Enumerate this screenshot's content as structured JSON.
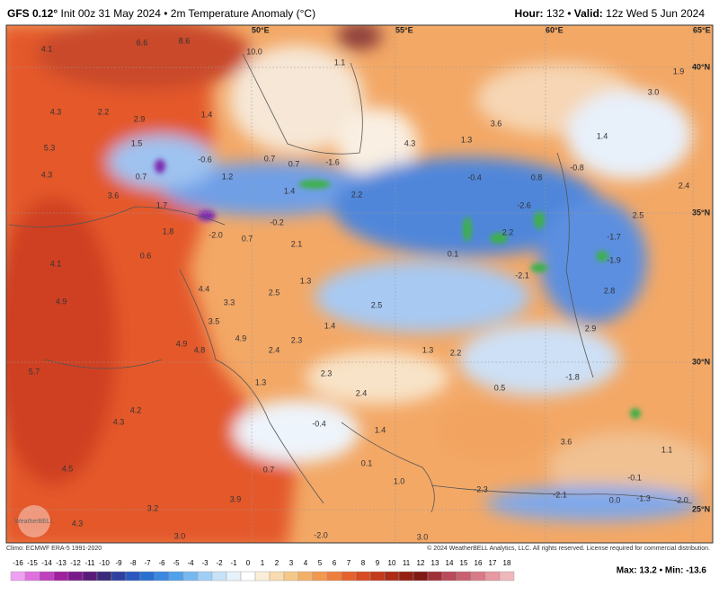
{
  "header": {
    "model": "GFS 0.12°",
    "init": "Init 00z 31 May 2024 • 2m Temperature Anomaly (°C)",
    "hour_label": "Hour:",
    "hour": "132 •",
    "valid_label": "Valid:",
    "valid": "12z Wed 5 Jun 2024"
  },
  "map": {
    "longitude_labels": [
      "50°E",
      "55°E",
      "60°E",
      "65°E"
    ],
    "latitude_labels": [
      "40°N",
      "35°N",
      "30°N",
      "25°N"
    ],
    "values": [
      "4.1",
      "6.6",
      "8.6",
      "10.0",
      "1.1",
      "1.9",
      "3.0",
      "4.3",
      "2.2",
      "2.9",
      "1.4",
      "3.6",
      "1.3",
      "4.3",
      "1.5",
      "5.3",
      "-0.6",
      "0.7",
      "0.7",
      "-1.6",
      "1.4",
      "4.3",
      "0.7",
      "1.2",
      "-0.4",
      "0.8",
      "-0.8",
      "2.4",
      "3.6",
      "1.4",
      "2.2",
      "-2.6",
      "1.7",
      "2.5",
      "-0.2",
      "1.8",
      "-2.0",
      "0.7",
      "2.2",
      "-1.7",
      "2.1",
      "0.1",
      "0.6",
      "-1.9",
      "4.1",
      "-2.1",
      "1.3",
      "4.4",
      "2.8",
      "2.5",
      "4.9",
      "3.3",
      "2.5",
      "3.5",
      "1.4",
      "2.9",
      "4.9",
      "2.3",
      "4.9",
      "4.8",
      "2.4",
      "1.3",
      "2.2",
      "-1.8",
      "5.7",
      "1.3",
      "2.3",
      "0.5",
      "2.4",
      "4.2",
      "4.3",
      "-0.4",
      "1.4",
      "3.6",
      "1.1",
      "4.5",
      "0.1",
      "0.7",
      "1.0",
      "-0.1",
      "3.9",
      "-2.3",
      "-2.1",
      "0.0",
      "-1.3",
      "-2.0",
      "3.2",
      "4.3",
      "3.0",
      "-2.0",
      "3.0"
    ],
    "logo": "WeatherBELL"
  },
  "footer": {
    "climo": "Climo: ECMWF ERA-5 1991-2020",
    "copyright": "© 2024 WeatherBELL Analytics, LLC. All rights reserved. License required for commercial distribution.",
    "extremes": "Max: 13.2 • Min: -13.6"
  },
  "colorbar": {
    "ticks": [
      -16,
      -15,
      -14,
      -13,
      -12,
      -11,
      -10,
      -9,
      -8,
      -7,
      -6,
      -5,
      -4,
      -3,
      -2,
      -1,
      0,
      1,
      2,
      3,
      4,
      5,
      6,
      7,
      8,
      9,
      10,
      11,
      12,
      13,
      14,
      15,
      16,
      17,
      18
    ],
    "colors": [
      "#f0a0f0",
      "#e070e0",
      "#c040c0",
      "#a020a0",
      "#7a1a8a",
      "#5a1a7a",
      "#3a2a7a",
      "#3040a0",
      "#2a5ac0",
      "#2a70d0",
      "#3a88e0",
      "#50a0ea",
      "#78b8f0",
      "#a0cff5",
      "#c8e2f8",
      "#e6f1fb",
      "#ffffff",
      "#fbeed8",
      "#f8dcb0",
      "#f6c888",
      "#f4b068",
      "#f29850",
      "#ee7e3c",
      "#e6622c",
      "#d84a22",
      "#c43a1c",
      "#ac2c18",
      "#952014",
      "#801a14",
      "#a0303a",
      "#b84a5a",
      "#c86070",
      "#d87a88",
      "#e898a0",
      "#f0b8bc"
    ]
  }
}
